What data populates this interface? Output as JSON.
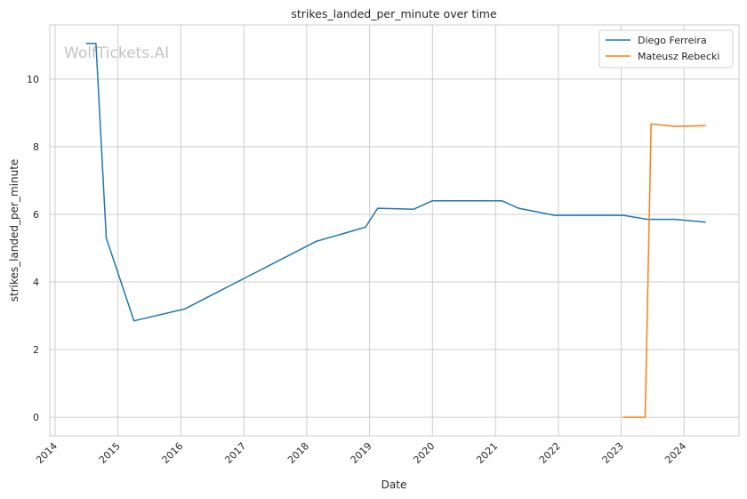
{
  "chart_data": {
    "type": "line",
    "title": "strikes_landed_per_minute over time",
    "xlabel": "Date",
    "ylabel": "strikes_landed_per_minute",
    "watermark": "WolfTickets.AI",
    "x_ticks": [
      "2014",
      "2015",
      "2016",
      "2017",
      "2018",
      "2019",
      "2020",
      "2021",
      "2022",
      "2023",
      "2024"
    ],
    "y_ticks": [
      0,
      2,
      4,
      6,
      8,
      10
    ],
    "xlim": [
      "2013-12-01",
      "2024-11-15"
    ],
    "ylim": [
      -0.55,
      11.6
    ],
    "grid": true,
    "legend_position": "top-right",
    "series": [
      {
        "name": "Diego Ferreira",
        "color": "#1f77b4",
        "points": [
          [
            "2014-07-01",
            11.05
          ],
          [
            "2014-08-26",
            11.05
          ],
          [
            "2014-10-25",
            5.3
          ],
          [
            "2015-04-04",
            2.85
          ],
          [
            "2016-01-23",
            3.2
          ],
          [
            "2018-02-24",
            5.2
          ],
          [
            "2018-12-08",
            5.62
          ],
          [
            "2019-02-17",
            6.18
          ],
          [
            "2019-09-14",
            6.15
          ],
          [
            "2020-01-01",
            6.4
          ],
          [
            "2021-02-07",
            6.4
          ],
          [
            "2021-05-15",
            6.18
          ],
          [
            "2021-12-11",
            5.97
          ],
          [
            "2023-01-14",
            5.97
          ],
          [
            "2023-06-03",
            5.85
          ],
          [
            "2023-11-11",
            5.85
          ],
          [
            "2024-05-04",
            5.77
          ]
        ]
      },
      {
        "name": "Mateusz Rebecki",
        "color": "#ff7f0e",
        "points": [
          [
            "2023-01-14",
            0.0
          ],
          [
            "2023-05-20",
            0.0
          ],
          [
            "2023-06-24",
            8.67
          ],
          [
            "2023-11-11",
            8.6
          ],
          [
            "2024-05-04",
            8.62
          ]
        ]
      }
    ]
  }
}
